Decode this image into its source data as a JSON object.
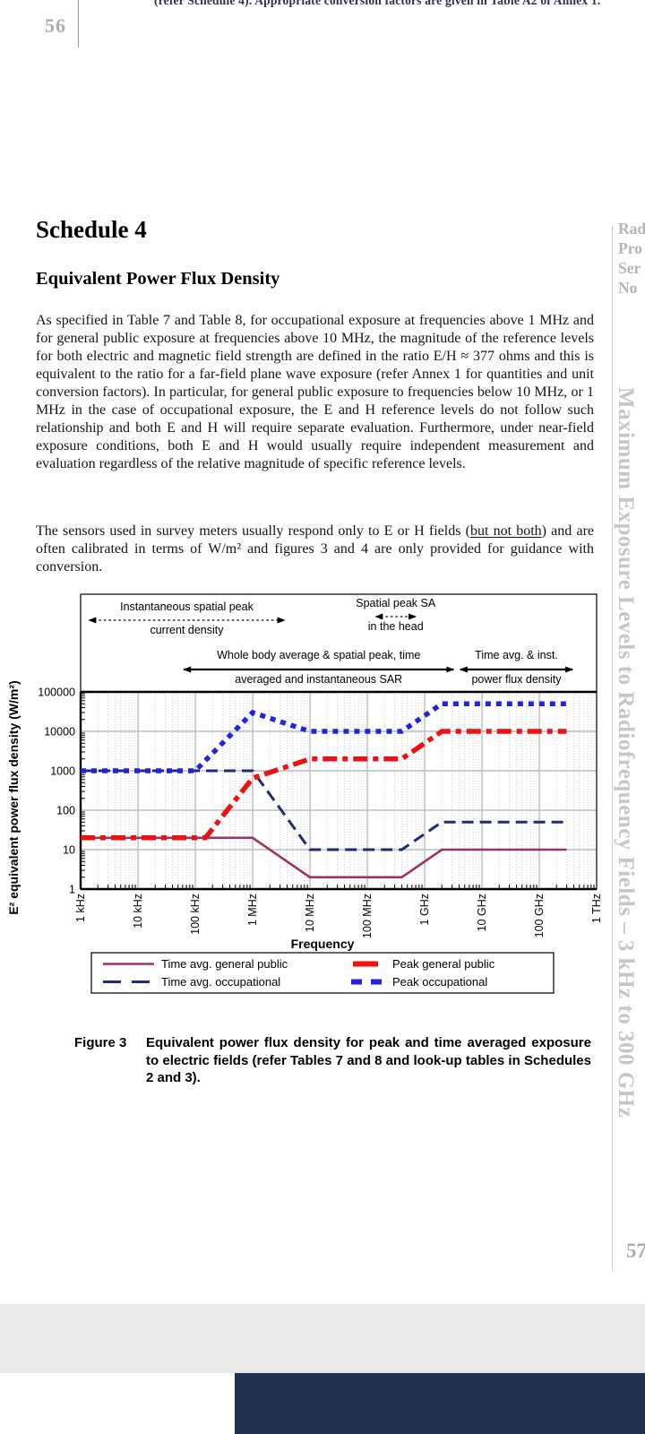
{
  "page": {
    "top_clipped_line": "(refer Schedule 4). Appropriate conversion factors are given in Table A2 of Annex 1.",
    "page_number_top": "56",
    "page_number_bottom": "57",
    "sidebar_clipped_lines": [
      "Rad",
      "Pro",
      "Ser",
      "No"
    ],
    "sidebar_vertical_title": "Maximum Exposure Levels to Radiofrequency Fields – 3 kHz to 300 GHz"
  },
  "document": {
    "heading": "Schedule 4",
    "subheading": "Equivalent Power Flux Density",
    "paragraph1": "As specified in Table 7 and Table 8, for occupational exposure at frequencies above 1 MHz and for general public exposure at frequencies above 10 MHz, the magnitude of the reference levels for both electric and magnetic field strength are defined in the ratio E/H ≈ 377 ohms and this is equivalent to the ratio for a far-field plane wave exposure (refer Annex 1 for quantities and unit conversion factors). In particular, for general public exposure to frequencies below 10 MHz, or 1 MHz in the case of occupational exposure, the E and H reference levels do not follow such relationship and both E and H will require separate evaluation. Furthermore, under near-field exposure conditions, both E and H would usually require independent measurement and evaluation regardless of the relative magnitude of specific reference levels.",
    "paragraph2_pre": "The sensors used in survey meters usually respond only to E or H fields (",
    "paragraph2_underlined": "but not both",
    "paragraph2_post": ") and are often calibrated in terms of W/m² and figures 3 and 4 are only provided for guidance with conversion."
  },
  "figure": {
    "caption_label": "Figure 3",
    "caption_text": "Equivalent power flux density for peak and time averaged exposure to electric fields (refer Tables 7 and 8 and look-up tables in Schedules 2 and 3)."
  },
  "chart_data": {
    "type": "line",
    "x_scale": "log",
    "y_scale": "log",
    "xlabel": "Frequency",
    "ylabel": "E² equivalent power flux density (W/m²)",
    "xlim_hz": [
      1000,
      1000000000000
    ],
    "ylim": [
      1,
      100000
    ],
    "grid": true,
    "legend_position": "bottom",
    "x_ticks": [
      {
        "label": "1 kHz",
        "hz": 1000
      },
      {
        "label": "10 kHz",
        "hz": 10000
      },
      {
        "label": "100 kHz",
        "hz": 100000
      },
      {
        "label": "1 MHz",
        "hz": 1000000
      },
      {
        "label": "10 MHz",
        "hz": 10000000
      },
      {
        "label": "100 MHz",
        "hz": 100000000
      },
      {
        "label": "1 GHz",
        "hz": 1000000000
      },
      {
        "label": "10 GHz",
        "hz": 10000000000
      },
      {
        "label": "100 GHz",
        "hz": 100000000000
      },
      {
        "label": "1 THz",
        "hz": 1000000000000
      }
    ],
    "y_ticks": [
      1,
      10,
      100,
      1000,
      10000,
      100000
    ],
    "series": [
      {
        "name": "Time avg. general public",
        "color": "#993366",
        "style": "solid",
        "points_hz_wm2": [
          [
            1000,
            20
          ],
          [
            1000000,
            20
          ],
          [
            10000000,
            2
          ],
          [
            400000000,
            2
          ],
          [
            2000000000,
            10
          ],
          [
            300000000000,
            10
          ]
        ]
      },
      {
        "name": "Time avg. occupational",
        "color": "#1f2a7a",
        "style": "dash",
        "points_hz_wm2": [
          [
            1000,
            1000
          ],
          [
            1000000,
            1000
          ],
          [
            10000000,
            10
          ],
          [
            400000000,
            10
          ],
          [
            2000000000,
            50
          ],
          [
            300000000000,
            50
          ]
        ]
      },
      {
        "name": "Peak general public",
        "color": "#ee1111",
        "style": "dashdot",
        "points_hz_wm2": [
          [
            1000,
            20
          ],
          [
            150000,
            20
          ],
          [
            1000000,
            650
          ],
          [
            10000000,
            2000
          ],
          [
            400000000,
            2000
          ],
          [
            2000000000,
            10000
          ],
          [
            300000000000,
            10000
          ]
        ]
      },
      {
        "name": "Peak occupational",
        "color": "#2323dd",
        "style": "dot",
        "points_hz_wm2": [
          [
            1000,
            1000
          ],
          [
            100000,
            1000
          ],
          [
            1000000,
            30000
          ],
          [
            10000000,
            10000
          ],
          [
            400000000,
            10000
          ],
          [
            2000000000,
            50000
          ],
          [
            300000000000,
            50000
          ]
        ]
      }
    ],
    "legend_order": [
      0,
      2,
      1,
      3
    ],
    "annotations": [
      {
        "line1": "Instantaneous spatial peak",
        "line2": "current density",
        "arrow_style": "dotted",
        "from_hz": 1400,
        "to_hz": 3600000,
        "row": 1,
        "dy": 0
      },
      {
        "line1": "Spatial peak SA",
        "line2": "in the head",
        "arrow_style": "dotted",
        "from_hz": 140000000,
        "to_hz": 700000000,
        "row": 1,
        "dy": -4
      },
      {
        "line1": "Whole body average & spatial peak, time",
        "line2": "averaged and instantaneous SAR",
        "arrow_style": "solid",
        "from_hz": 63000,
        "to_hz": 3200000000,
        "row": 2,
        "dy": 0
      },
      {
        "line1": "Time avg. & inst.",
        "line2": "power flux density",
        "arrow_style": "solid",
        "from_hz": 4200000000,
        "to_hz": 380000000000,
        "row": 2,
        "dy": 0
      }
    ]
  }
}
